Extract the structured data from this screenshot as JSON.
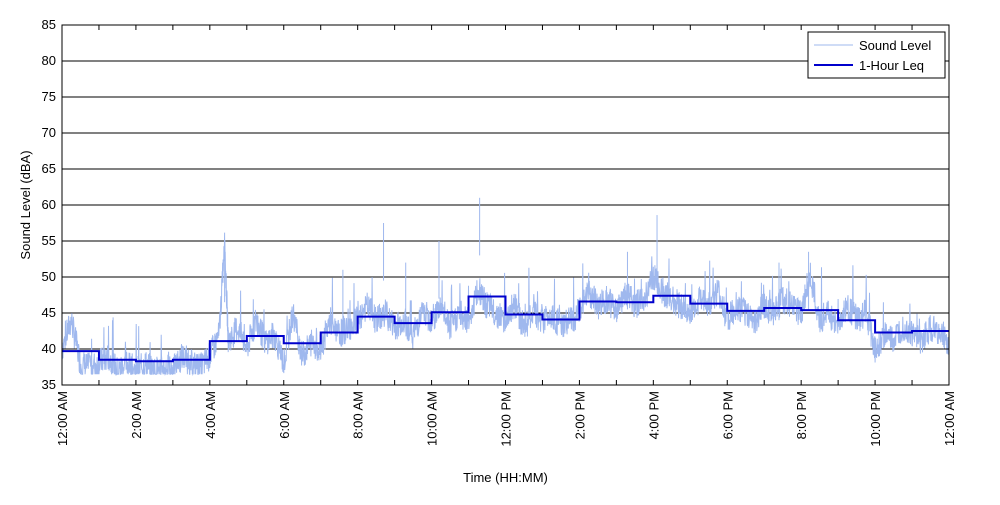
{
  "chart_data": {
    "type": "line",
    "title": "",
    "xlabel": "Time (HH:MM)",
    "ylabel": "Sound Level (dBA)",
    "ylim": [
      35,
      85
    ],
    "yticks": [
      35,
      40,
      45,
      50,
      55,
      60,
      65,
      70,
      75,
      80,
      85
    ],
    "xlim_hours": [
      0,
      24
    ],
    "xticks": [
      {
        "hour": 0,
        "label": "12:00 AM"
      },
      {
        "hour": 2,
        "label": "2:00 AM"
      },
      {
        "hour": 4,
        "label": "4:00 AM"
      },
      {
        "hour": 6,
        "label": "6:00 AM"
      },
      {
        "hour": 8,
        "label": "8:00 AM"
      },
      {
        "hour": 10,
        "label": "10:00 AM"
      },
      {
        "hour": 12,
        "label": "12:00 PM"
      },
      {
        "hour": 14,
        "label": "2:00 PM"
      },
      {
        "hour": 16,
        "label": "4:00 PM"
      },
      {
        "hour": 18,
        "label": "6:00 PM"
      },
      {
        "hour": 20,
        "label": "8:00 PM"
      },
      {
        "hour": 22,
        "label": "10:00 PM"
      },
      {
        "hour": 24,
        "label": "12:00 AM"
      }
    ],
    "grid": "horizontal",
    "legend_position": "top-right",
    "series": [
      {
        "name": "Sound Level",
        "color": "#9fb8ee",
        "style": "thin-line",
        "x": [
          0,
          0.25,
          0.5,
          0.75,
          1,
          1.25,
          1.5,
          1.75,
          2,
          2.25,
          2.5,
          2.75,
          3,
          3.25,
          3.5,
          3.75,
          4,
          4.25,
          4.4,
          4.5,
          4.75,
          5,
          5.25,
          5.5,
          5.75,
          6,
          6.25,
          6.5,
          6.75,
          7,
          7.25,
          7.5,
          7.75,
          8,
          8.25,
          8.5,
          8.75,
          9,
          9.25,
          9.5,
          9.75,
          10,
          10.25,
          10.5,
          10.75,
          11,
          11.25,
          11.5,
          11.75,
          12,
          12.25,
          12.5,
          12.75,
          13,
          13.25,
          13.5,
          13.75,
          14,
          14.25,
          14.5,
          14.75,
          15,
          15.25,
          15.5,
          15.75,
          16,
          16.25,
          16.5,
          16.75,
          17,
          17.25,
          17.5,
          17.75,
          18,
          18.25,
          18.5,
          18.75,
          19,
          19.25,
          19.5,
          19.75,
          20,
          20.25,
          20.5,
          20.75,
          21,
          21.25,
          21.5,
          21.75,
          22,
          22.25,
          22.5,
          22.75,
          23,
          23.25,
          23.5,
          23.75,
          24
        ],
        "y": [
          40,
          44,
          38,
          37.5,
          38,
          39,
          37,
          38,
          37,
          38,
          37,
          37.5,
          37,
          39,
          38,
          37.5,
          39,
          42,
          54.5,
          41,
          43,
          40,
          44,
          41,
          42,
          38,
          45,
          39,
          41,
          40,
          44,
          42,
          43,
          44,
          46,
          44,
          45,
          43,
          44,
          42,
          45,
          44,
          46,
          43,
          45,
          44,
          48,
          46,
          45,
          44,
          46,
          43,
          45,
          44,
          45,
          43,
          44,
          45,
          48,
          46,
          47,
          45,
          48,
          46,
          47,
          50,
          48,
          47,
          46,
          45,
          47,
          46,
          48,
          44,
          46,
          45,
          44,
          46,
          45,
          47,
          46,
          45,
          50,
          44,
          45,
          43,
          46,
          44,
          45,
          40,
          42,
          41,
          43,
          42,
          41,
          43,
          42,
          41
        ]
      },
      {
        "name": "1-Hour Leq",
        "color": "#0000cc",
        "style": "step",
        "hours": [
          0,
          1,
          2,
          3,
          4,
          5,
          6,
          7,
          8,
          9,
          10,
          11,
          12,
          13,
          14,
          15,
          16,
          17,
          18,
          19,
          20,
          21,
          22,
          23
        ],
        "values": [
          39.7,
          38.5,
          38.3,
          38.5,
          41.1,
          41.8,
          40.8,
          42.3,
          44.5,
          43.6,
          45.1,
          47.3,
          44.8,
          44.1,
          46.6,
          46.5,
          47.4,
          46.3,
          45.3,
          45.7,
          45.4,
          44.0,
          42.3,
          42.5
        ]
      }
    ]
  }
}
